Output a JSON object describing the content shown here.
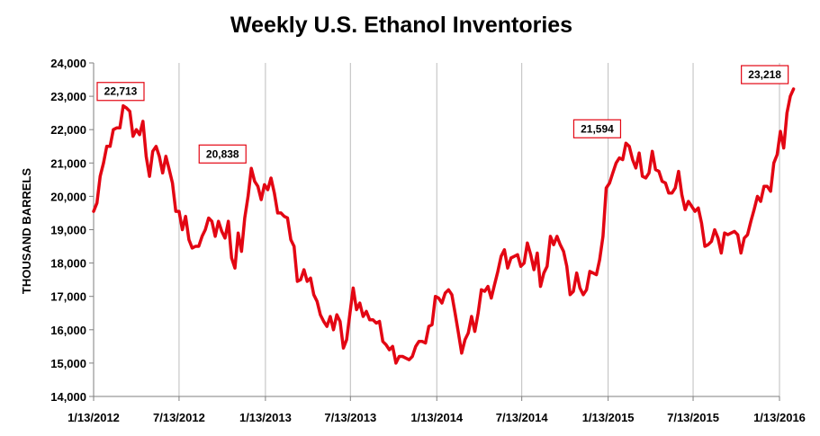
{
  "chart_data": {
    "type": "line",
    "title": "Weekly U.S. Ethanol Inventories",
    "xlabel": "",
    "ylabel": "THOUSAND BARRELS",
    "ylim": [
      14000,
      24000
    ],
    "yticks": [
      14000,
      15000,
      16000,
      17000,
      18000,
      19000,
      20000,
      21000,
      22000,
      23000,
      24000
    ],
    "ytick_labels": [
      "14,000",
      "15,000",
      "16,000",
      "17,000",
      "18,000",
      "19,000",
      "20,000",
      "21,000",
      "22,000",
      "23,000",
      "24,000"
    ],
    "xlim": [
      "2012-01-13",
      "2016-01-13"
    ],
    "xticks": [
      "2012-01-13",
      "2012-07-13",
      "2013-01-13",
      "2013-07-13",
      "2014-01-13",
      "2014-07-13",
      "2015-01-13",
      "2015-07-13",
      "2016-01-13"
    ],
    "xtick_labels": [
      "1/13/2012",
      "7/13/2012",
      "1/13/2013",
      "7/13/2013",
      "1/13/2014",
      "7/13/2014",
      "1/13/2015",
      "7/13/2015",
      "1/13/2016"
    ],
    "grid": "vertical",
    "line_color": "#e30613",
    "series": [
      {
        "name": "",
        "points": [
          [
            "2012-01-13",
            19550
          ],
          [
            "2012-01-20",
            19800
          ],
          [
            "2012-01-27",
            20600
          ],
          [
            "2012-02-03",
            21000
          ],
          [
            "2012-02-10",
            21500
          ],
          [
            "2012-02-17",
            21500
          ],
          [
            "2012-02-24",
            22000
          ],
          [
            "2012-03-02",
            22050
          ],
          [
            "2012-03-09",
            22050
          ],
          [
            "2012-03-16",
            22713
          ],
          [
            "2012-03-23",
            22650
          ],
          [
            "2012-03-30",
            22550
          ],
          [
            "2012-04-06",
            21800
          ],
          [
            "2012-04-13",
            22000
          ],
          [
            "2012-04-20",
            21850
          ],
          [
            "2012-04-27",
            22250
          ],
          [
            "2012-05-04",
            21200
          ],
          [
            "2012-05-11",
            20600
          ],
          [
            "2012-05-18",
            21350
          ],
          [
            "2012-05-25",
            21500
          ],
          [
            "2012-06-01",
            21200
          ],
          [
            "2012-06-08",
            20700
          ],
          [
            "2012-06-15",
            21200
          ],
          [
            "2012-06-22",
            20800
          ],
          [
            "2012-06-29",
            20400
          ],
          [
            "2012-07-06",
            19550
          ],
          [
            "2012-07-13",
            19550
          ],
          [
            "2012-07-20",
            19000
          ],
          [
            "2012-07-27",
            19400
          ],
          [
            "2012-08-03",
            18700
          ],
          [
            "2012-08-10",
            18450
          ],
          [
            "2012-08-17",
            18500
          ],
          [
            "2012-08-24",
            18500
          ],
          [
            "2012-08-31",
            18800
          ],
          [
            "2012-09-07",
            19000
          ],
          [
            "2012-09-14",
            19350
          ],
          [
            "2012-09-21",
            19250
          ],
          [
            "2012-09-28",
            18800
          ],
          [
            "2012-10-05",
            19250
          ],
          [
            "2012-10-12",
            18950
          ],
          [
            "2012-10-19",
            18750
          ],
          [
            "2012-10-26",
            19250
          ],
          [
            "2012-11-02",
            18150
          ],
          [
            "2012-11-09",
            17850
          ],
          [
            "2012-11-16",
            18900
          ],
          [
            "2012-11-23",
            18350
          ],
          [
            "2012-11-30",
            19350
          ],
          [
            "2012-12-07",
            20000
          ],
          [
            "2012-12-14",
            20838
          ],
          [
            "2012-12-21",
            20450
          ],
          [
            "2012-12-28",
            20300
          ],
          [
            "2013-01-04",
            19900
          ],
          [
            "2013-01-11",
            20350
          ],
          [
            "2013-01-18",
            20200
          ],
          [
            "2013-01-25",
            20550
          ],
          [
            "2013-02-01",
            20100
          ],
          [
            "2013-02-08",
            19500
          ],
          [
            "2013-02-15",
            19500
          ],
          [
            "2013-02-22",
            19400
          ],
          [
            "2013-03-01",
            19350
          ],
          [
            "2013-03-08",
            18700
          ],
          [
            "2013-03-15",
            18500
          ],
          [
            "2013-03-22",
            17450
          ],
          [
            "2013-03-29",
            17500
          ],
          [
            "2013-04-05",
            17800
          ],
          [
            "2013-04-12",
            17450
          ],
          [
            "2013-04-19",
            17550
          ],
          [
            "2013-04-26",
            17050
          ],
          [
            "2013-05-03",
            16850
          ],
          [
            "2013-05-10",
            16450
          ],
          [
            "2013-05-17",
            16250
          ],
          [
            "2013-05-24",
            16100
          ],
          [
            "2013-05-31",
            16400
          ],
          [
            "2013-06-07",
            16000
          ],
          [
            "2013-06-14",
            16450
          ],
          [
            "2013-06-21",
            16250
          ],
          [
            "2013-06-28",
            15450
          ],
          [
            "2013-07-05",
            15700
          ],
          [
            "2013-07-12",
            16500
          ],
          [
            "2013-07-19",
            17250
          ],
          [
            "2013-07-26",
            16600
          ],
          [
            "2013-08-02",
            16800
          ],
          [
            "2013-08-09",
            16400
          ],
          [
            "2013-08-16",
            16550
          ],
          [
            "2013-08-23",
            16300
          ],
          [
            "2013-08-30",
            16300
          ],
          [
            "2013-09-06",
            16200
          ],
          [
            "2013-09-13",
            16250
          ],
          [
            "2013-09-20",
            15650
          ],
          [
            "2013-09-27",
            15550
          ],
          [
            "2013-10-04",
            15400
          ],
          [
            "2013-10-11",
            15500
          ],
          [
            "2013-10-18",
            15000
          ],
          [
            "2013-10-25",
            15200
          ],
          [
            "2013-11-01",
            15200
          ],
          [
            "2013-11-08",
            15150
          ],
          [
            "2013-11-15",
            15100
          ],
          [
            "2013-11-22",
            15200
          ],
          [
            "2013-11-29",
            15500
          ],
          [
            "2013-12-06",
            15650
          ],
          [
            "2013-12-13",
            15650
          ],
          [
            "2013-12-20",
            15600
          ],
          [
            "2013-12-27",
            16100
          ],
          [
            "2014-01-03",
            16150
          ],
          [
            "2014-01-10",
            17000
          ],
          [
            "2014-01-17",
            16950
          ],
          [
            "2014-01-24",
            16800
          ],
          [
            "2014-01-31",
            17100
          ],
          [
            "2014-02-07",
            17200
          ],
          [
            "2014-02-14",
            17050
          ],
          [
            "2014-02-21",
            16500
          ],
          [
            "2014-02-28",
            15900
          ],
          [
            "2014-03-07",
            15300
          ],
          [
            "2014-03-14",
            15700
          ],
          [
            "2014-03-21",
            15900
          ],
          [
            "2014-03-28",
            16400
          ],
          [
            "2014-04-04",
            15950
          ],
          [
            "2014-04-11",
            16500
          ],
          [
            "2014-04-18",
            17200
          ],
          [
            "2014-04-25",
            17150
          ],
          [
            "2014-05-02",
            17300
          ],
          [
            "2014-05-09",
            16950
          ],
          [
            "2014-05-16",
            17350
          ],
          [
            "2014-05-23",
            17750
          ],
          [
            "2014-05-30",
            18200
          ],
          [
            "2014-06-06",
            18400
          ],
          [
            "2014-06-13",
            17850
          ],
          [
            "2014-06-20",
            18150
          ],
          [
            "2014-06-27",
            18200
          ],
          [
            "2014-07-04",
            18250
          ],
          [
            "2014-07-11",
            17900
          ],
          [
            "2014-07-18",
            18000
          ],
          [
            "2014-07-25",
            18600
          ],
          [
            "2014-08-01",
            18250
          ],
          [
            "2014-08-08",
            17800
          ],
          [
            "2014-08-15",
            18300
          ],
          [
            "2014-08-22",
            17300
          ],
          [
            "2014-08-29",
            17700
          ],
          [
            "2014-09-05",
            17900
          ],
          [
            "2014-09-12",
            18800
          ],
          [
            "2014-09-19",
            18550
          ],
          [
            "2014-09-26",
            18800
          ],
          [
            "2014-10-03",
            18550
          ],
          [
            "2014-10-10",
            18350
          ],
          [
            "2014-10-17",
            17900
          ],
          [
            "2014-10-24",
            17050
          ],
          [
            "2014-10-31",
            17150
          ],
          [
            "2014-11-07",
            17700
          ],
          [
            "2014-11-14",
            17250
          ],
          [
            "2014-11-21",
            17050
          ],
          [
            "2014-11-28",
            17200
          ],
          [
            "2014-12-05",
            17750
          ],
          [
            "2014-12-12",
            17700
          ],
          [
            "2014-12-19",
            17650
          ],
          [
            "2014-12-26",
            18100
          ],
          [
            "2015-01-02",
            18800
          ],
          [
            "2015-01-09",
            20250
          ],
          [
            "2015-01-16",
            20400
          ],
          [
            "2015-01-23",
            20700
          ],
          [
            "2015-01-30",
            21000
          ],
          [
            "2015-02-06",
            21150
          ],
          [
            "2015-02-13",
            21100
          ],
          [
            "2015-02-20",
            21594
          ],
          [
            "2015-02-27",
            21500
          ],
          [
            "2015-03-06",
            21100
          ],
          [
            "2015-03-13",
            20850
          ],
          [
            "2015-03-20",
            21300
          ],
          [
            "2015-03-27",
            20600
          ],
          [
            "2015-04-03",
            20550
          ],
          [
            "2015-04-10",
            20700
          ],
          [
            "2015-04-17",
            21350
          ],
          [
            "2015-04-24",
            20800
          ],
          [
            "2015-05-01",
            20750
          ],
          [
            "2015-05-08",
            20450
          ],
          [
            "2015-05-15",
            20400
          ],
          [
            "2015-05-22",
            20100
          ],
          [
            "2015-05-29",
            20100
          ],
          [
            "2015-06-05",
            20250
          ],
          [
            "2015-06-12",
            20750
          ],
          [
            "2015-06-19",
            20050
          ],
          [
            "2015-06-26",
            19600
          ],
          [
            "2015-07-03",
            19850
          ],
          [
            "2015-07-10",
            19700
          ],
          [
            "2015-07-17",
            19550
          ],
          [
            "2015-07-24",
            19650
          ],
          [
            "2015-07-31",
            19200
          ],
          [
            "2015-08-07",
            18500
          ],
          [
            "2015-08-14",
            18550
          ],
          [
            "2015-08-21",
            18650
          ],
          [
            "2015-08-28",
            19000
          ],
          [
            "2015-09-04",
            18750
          ],
          [
            "2015-09-11",
            18300
          ],
          [
            "2015-09-18",
            18900
          ],
          [
            "2015-09-25",
            18850
          ],
          [
            "2015-10-02",
            18900
          ],
          [
            "2015-10-09",
            18950
          ],
          [
            "2015-10-16",
            18850
          ],
          [
            "2015-10-23",
            18300
          ],
          [
            "2015-10-30",
            18750
          ],
          [
            "2015-11-06",
            18850
          ],
          [
            "2015-11-13",
            19250
          ],
          [
            "2015-11-20",
            19600
          ],
          [
            "2015-11-27",
            20000
          ],
          [
            "2015-12-04",
            19850
          ],
          [
            "2015-12-11",
            20300
          ],
          [
            "2015-12-18",
            20300
          ],
          [
            "2015-12-25",
            20150
          ],
          [
            "2016-01-01",
            21000
          ],
          [
            "2016-01-08",
            21250
          ],
          [
            "2016-01-15",
            21950
          ],
          [
            "2016-01-22",
            21450
          ],
          [
            "2016-01-29",
            22500
          ],
          [
            "2016-02-05",
            23000
          ],
          [
            "2016-02-12",
            23218
          ]
        ]
      }
    ],
    "annotations": [
      {
        "label": "22,713",
        "date": "2012-03-16",
        "value": 22713
      },
      {
        "label": "20,838",
        "date": "2012-12-14",
        "value": 20838
      },
      {
        "label": "21,594",
        "date": "2015-02-20",
        "value": 21594
      },
      {
        "label": "23,218",
        "date": "2016-02-12",
        "value": 23218
      }
    ]
  }
}
